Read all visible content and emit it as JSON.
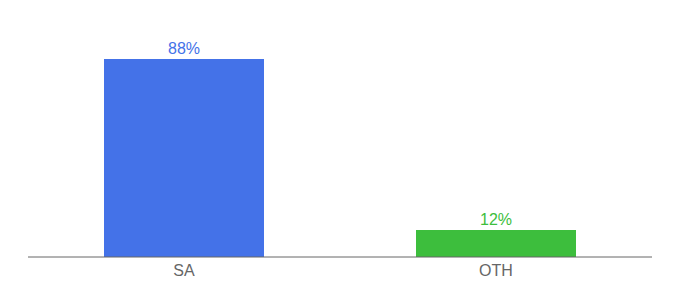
{
  "chart_data": {
    "type": "bar",
    "categories": [
      "SA",
      "OTH"
    ],
    "values": [
      88,
      12
    ],
    "value_labels": [
      "88%",
      "12%"
    ],
    "colors": [
      "#4472e8",
      "#3dbe3d"
    ],
    "ylim": [
      0,
      100
    ],
    "data_labels": true,
    "tick_labels": "x",
    "grid": false
  }
}
